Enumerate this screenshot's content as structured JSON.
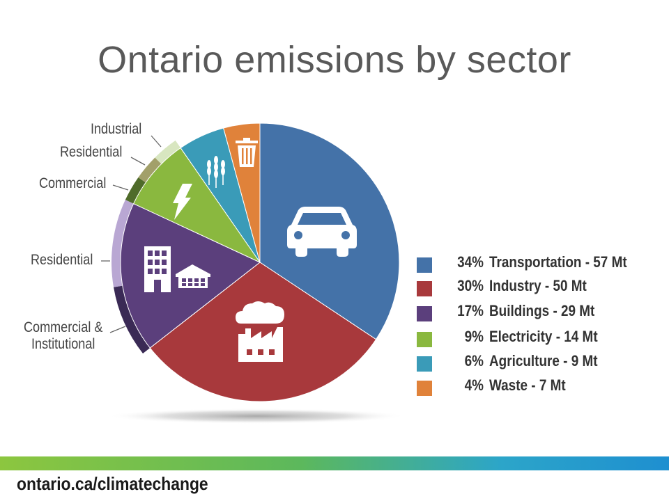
{
  "title": "Ontario emissions by sector",
  "footer": {
    "url": "ontario.ca/climatechange"
  },
  "chart_data": {
    "type": "pie",
    "title": "Ontario emissions by sector",
    "unit": "Mt",
    "legend_position": "right",
    "slices": [
      {
        "pct_label": "34%",
        "label": "Transportation - 57 Mt",
        "value": 57,
        "percent": 34,
        "color": "#4472a8",
        "icon": "car-icon"
      },
      {
        "pct_label": "30%",
        "label": "Industry - 50 Mt",
        "value": 50,
        "percent": 30,
        "color": "#a8393c",
        "icon": "factory-icon"
      },
      {
        "pct_label": "17%",
        "label": "Buildings - 29 Mt",
        "value": 29,
        "percent": 17,
        "color": "#5b3f7c",
        "icon": "buildings-icon"
      },
      {
        "pct_label": "9%",
        "label": "Electricity - 14 Mt",
        "value": 14,
        "percent": 9,
        "color": "#8ab83f",
        "icon": "lightning-icon"
      },
      {
        "pct_label": "6%",
        "label": "Agriculture - 9 Mt",
        "value": 9,
        "percent": 6,
        "color": "#3a9bb8",
        "icon": "wheat-icon"
      },
      {
        "pct_label": "4%",
        "label": "Waste - 7 Mt",
        "value": 7,
        "percent": 4,
        "color": "#e0823a",
        "icon": "trash-icon"
      }
    ],
    "callouts": [
      {
        "label": "Industrial",
        "parent": "Electricity"
      },
      {
        "label": "Residential",
        "parent": "Electricity"
      },
      {
        "label": "Commercial",
        "parent": "Electricity"
      },
      {
        "label": "Residential",
        "parent": "Buildings"
      },
      {
        "label": "Commercial &",
        "label2": "Institutional",
        "parent": "Buildings"
      }
    ]
  }
}
